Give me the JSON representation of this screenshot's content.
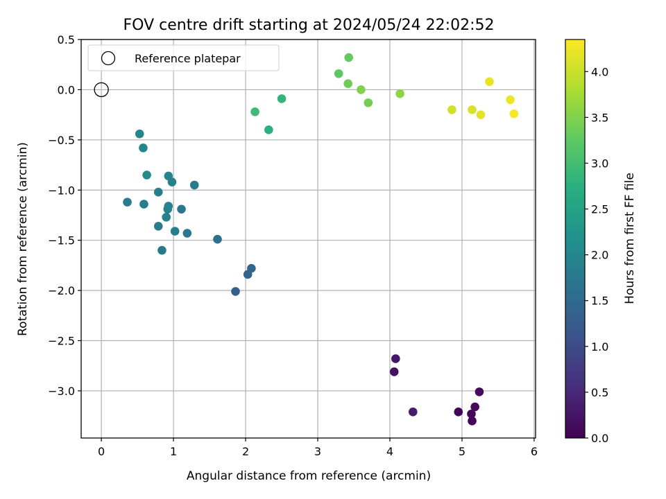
{
  "chart_data": {
    "type": "scatter",
    "title": "FOV centre drift starting at 2024/05/24 22:02:52",
    "xlabel": "Angular distance from reference (arcmin)",
    "ylabel": "Rotation from reference (arcmin)",
    "xlim": [
      -0.28,
      6.02
    ],
    "ylim": [
      -3.47,
      0.5
    ],
    "xticks": [
      "0",
      "1",
      "2",
      "3",
      "4",
      "5",
      "6"
    ],
    "yticks": [
      "0.5",
      "0.0",
      "−0.5",
      "−1.0",
      "−1.5",
      "−2.0",
      "−2.5",
      "−3.0"
    ],
    "grid": true,
    "legend": {
      "position": "top-left",
      "entries": [
        "Reference platepar"
      ]
    },
    "reference_point": {
      "x": 0,
      "y": 0
    },
    "colorbar": {
      "label": "Hours from first FF file",
      "min": 0.0,
      "max": 4.35,
      "ticks": [
        "0.0",
        "0.5",
        "1.0",
        "1.5",
        "2.0",
        "2.5",
        "3.0",
        "3.5",
        "4.0"
      ],
      "colormap": "viridis"
    },
    "points": [
      {
        "x": 4.95,
        "y": -3.21,
        "c": 0.05
      },
      {
        "x": 5.14,
        "y": -3.3,
        "c": 0.05
      },
      {
        "x": 5.13,
        "y": -3.23,
        "c": 0.08
      },
      {
        "x": 5.18,
        "y": -3.16,
        "c": 0.12
      },
      {
        "x": 5.24,
        "y": -3.01,
        "c": 0.12
      },
      {
        "x": 4.32,
        "y": -3.21,
        "c": 0.35
      },
      {
        "x": 4.06,
        "y": -2.81,
        "c": 0.2
      },
      {
        "x": 4.08,
        "y": -2.68,
        "c": 0.25
      },
      {
        "x": 1.86,
        "y": -2.01,
        "c": 1.32
      },
      {
        "x": 2.03,
        "y": -1.84,
        "c": 1.38
      },
      {
        "x": 2.08,
        "y": -1.78,
        "c": 1.42
      },
      {
        "x": 1.61,
        "y": -1.49,
        "c": 1.62
      },
      {
        "x": 1.19,
        "y": -1.43,
        "c": 1.72
      },
      {
        "x": 1.02,
        "y": -1.41,
        "c": 1.8
      },
      {
        "x": 0.84,
        "y": -1.6,
        "c": 1.78
      },
      {
        "x": 0.79,
        "y": -1.36,
        "c": 1.83
      },
      {
        "x": 0.9,
        "y": -1.27,
        "c": 1.87
      },
      {
        "x": 0.92,
        "y": -1.19,
        "c": 1.9
      },
      {
        "x": 0.93,
        "y": -1.16,
        "c": 1.92
      },
      {
        "x": 1.11,
        "y": -1.19,
        "c": 1.74
      },
      {
        "x": 0.59,
        "y": -1.14,
        "c": 1.82
      },
      {
        "x": 0.36,
        "y": -1.12,
        "c": 1.8
      },
      {
        "x": 0.79,
        "y": -1.02,
        "c": 1.85
      },
      {
        "x": 1.29,
        "y": -0.95,
        "c": 1.76
      },
      {
        "x": 0.98,
        "y": -0.92,
        "c": 1.9
      },
      {
        "x": 0.93,
        "y": -0.86,
        "c": 1.95
      },
      {
        "x": 0.63,
        "y": -0.85,
        "c": 2.05
      },
      {
        "x": 0.58,
        "y": -0.58,
        "c": 1.95
      },
      {
        "x": 0.53,
        "y": -0.44,
        "c": 1.98
      },
      {
        "x": 2.13,
        "y": -0.22,
        "c": 2.95
      },
      {
        "x": 2.32,
        "y": -0.4,
        "c": 2.75
      },
      {
        "x": 2.5,
        "y": -0.09,
        "c": 2.85
      },
      {
        "x": 3.29,
        "y": 0.16,
        "c": 3.25
      },
      {
        "x": 3.43,
        "y": 0.32,
        "c": 3.3
      },
      {
        "x": 3.42,
        "y": 0.06,
        "c": 3.38
      },
      {
        "x": 3.6,
        "y": 0.0,
        "c": 3.5
      },
      {
        "x": 3.7,
        "y": -0.13,
        "c": 3.4
      },
      {
        "x": 4.14,
        "y": -0.04,
        "c": 3.6
      },
      {
        "x": 4.86,
        "y": -0.2,
        "c": 4.05
      },
      {
        "x": 5.14,
        "y": -0.2,
        "c": 4.1
      },
      {
        "x": 5.26,
        "y": -0.25,
        "c": 4.15
      },
      {
        "x": 5.38,
        "y": 0.08,
        "c": 4.2
      },
      {
        "x": 5.67,
        "y": -0.1,
        "c": 4.25
      },
      {
        "x": 5.72,
        "y": -0.24,
        "c": 4.3
      }
    ]
  }
}
